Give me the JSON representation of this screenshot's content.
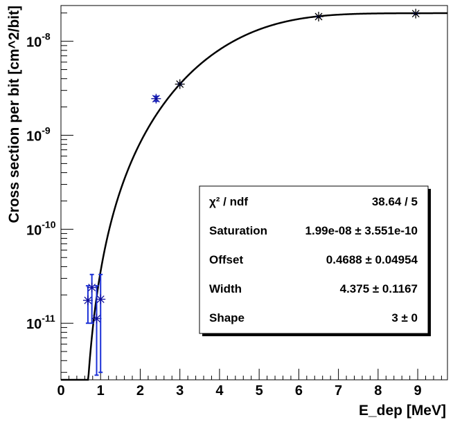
{
  "chart_data": {
    "type": "scatter",
    "xlabel": "E_dep [MeV]",
    "ylabel": "Cross section per bit [cm^2/bit]",
    "xlim": [
      0,
      9.75
    ],
    "ylim": [
      2.5e-12,
      2.4e-08
    ],
    "yscale": "log",
    "grid": false,
    "x_ticks": [
      "0",
      "1",
      "2",
      "3",
      "4",
      "5",
      "6",
      "7",
      "8",
      "9"
    ],
    "y_ticks": [
      {
        "value": 1e-11,
        "base": "10",
        "exp": "-11"
      },
      {
        "value": 1e-10,
        "base": "10",
        "exp": "-10"
      },
      {
        "value": 1e-09,
        "base": "10",
        "exp": "-9"
      },
      {
        "value": 1e-08,
        "base": "10",
        "exp": "-8"
      }
    ],
    "series": [
      {
        "points": [
          {
            "x": 0.68,
            "y": 1.75e-11,
            "ylo": 1e-11,
            "yhi": 2.5e-11,
            "color": "#0b0b9c"
          },
          {
            "x": 0.78,
            "y": 2.4e-11,
            "ylo": 1e-11,
            "yhi": 3.3e-11,
            "color": "#0b0b9c"
          },
          {
            "x": 0.9,
            "y": 1.12e-11,
            "ylo": 2.8e-12,
            "yhi": 2.5e-11,
            "color": "#0b0b9c"
          },
          {
            "x": 1.0,
            "y": 1.8e-11,
            "ylo": 3e-12,
            "yhi": 3.3e-11,
            "color": "#0b0b9c"
          },
          {
            "x": 2.4,
            "y": 2.45e-09,
            "ylo": 2.3e-09,
            "yhi": 2.6e-09,
            "color": "#0b0b9c"
          },
          {
            "x": 3.0,
            "y": 3.5e-09,
            "ylo": 3.4e-09,
            "yhi": 3.6e-09,
            "color": "#000000"
          },
          {
            "x": 6.5,
            "y": 1.83e-08,
            "ylo": 1.8e-08,
            "yhi": 1.86e-08,
            "color": "#000000"
          },
          {
            "x": 8.95,
            "y": 1.97e-08,
            "ylo": 1.94e-08,
            "yhi": 2e-08,
            "color": "#000000"
          }
        ]
      }
    ],
    "fit": {
      "function": "weibull",
      "saturation": 1.99e-08,
      "offset": 0.4688,
      "width": 4.375,
      "shape": 3
    },
    "stats": {
      "position": "center-right",
      "rows": [
        {
          "label": "χ² / ndf",
          "value": "38.64 / 5"
        },
        {
          "label": "Saturation",
          "value": "1.99e-08 ± 3.551e-10"
        },
        {
          "label": "Offset",
          "value": "0.4688 ± 0.04954"
        },
        {
          "label": "Width",
          "value": "4.375 ± 0.1167"
        },
        {
          "label": "Shape",
          "value": "3 ±     0"
        }
      ]
    }
  }
}
